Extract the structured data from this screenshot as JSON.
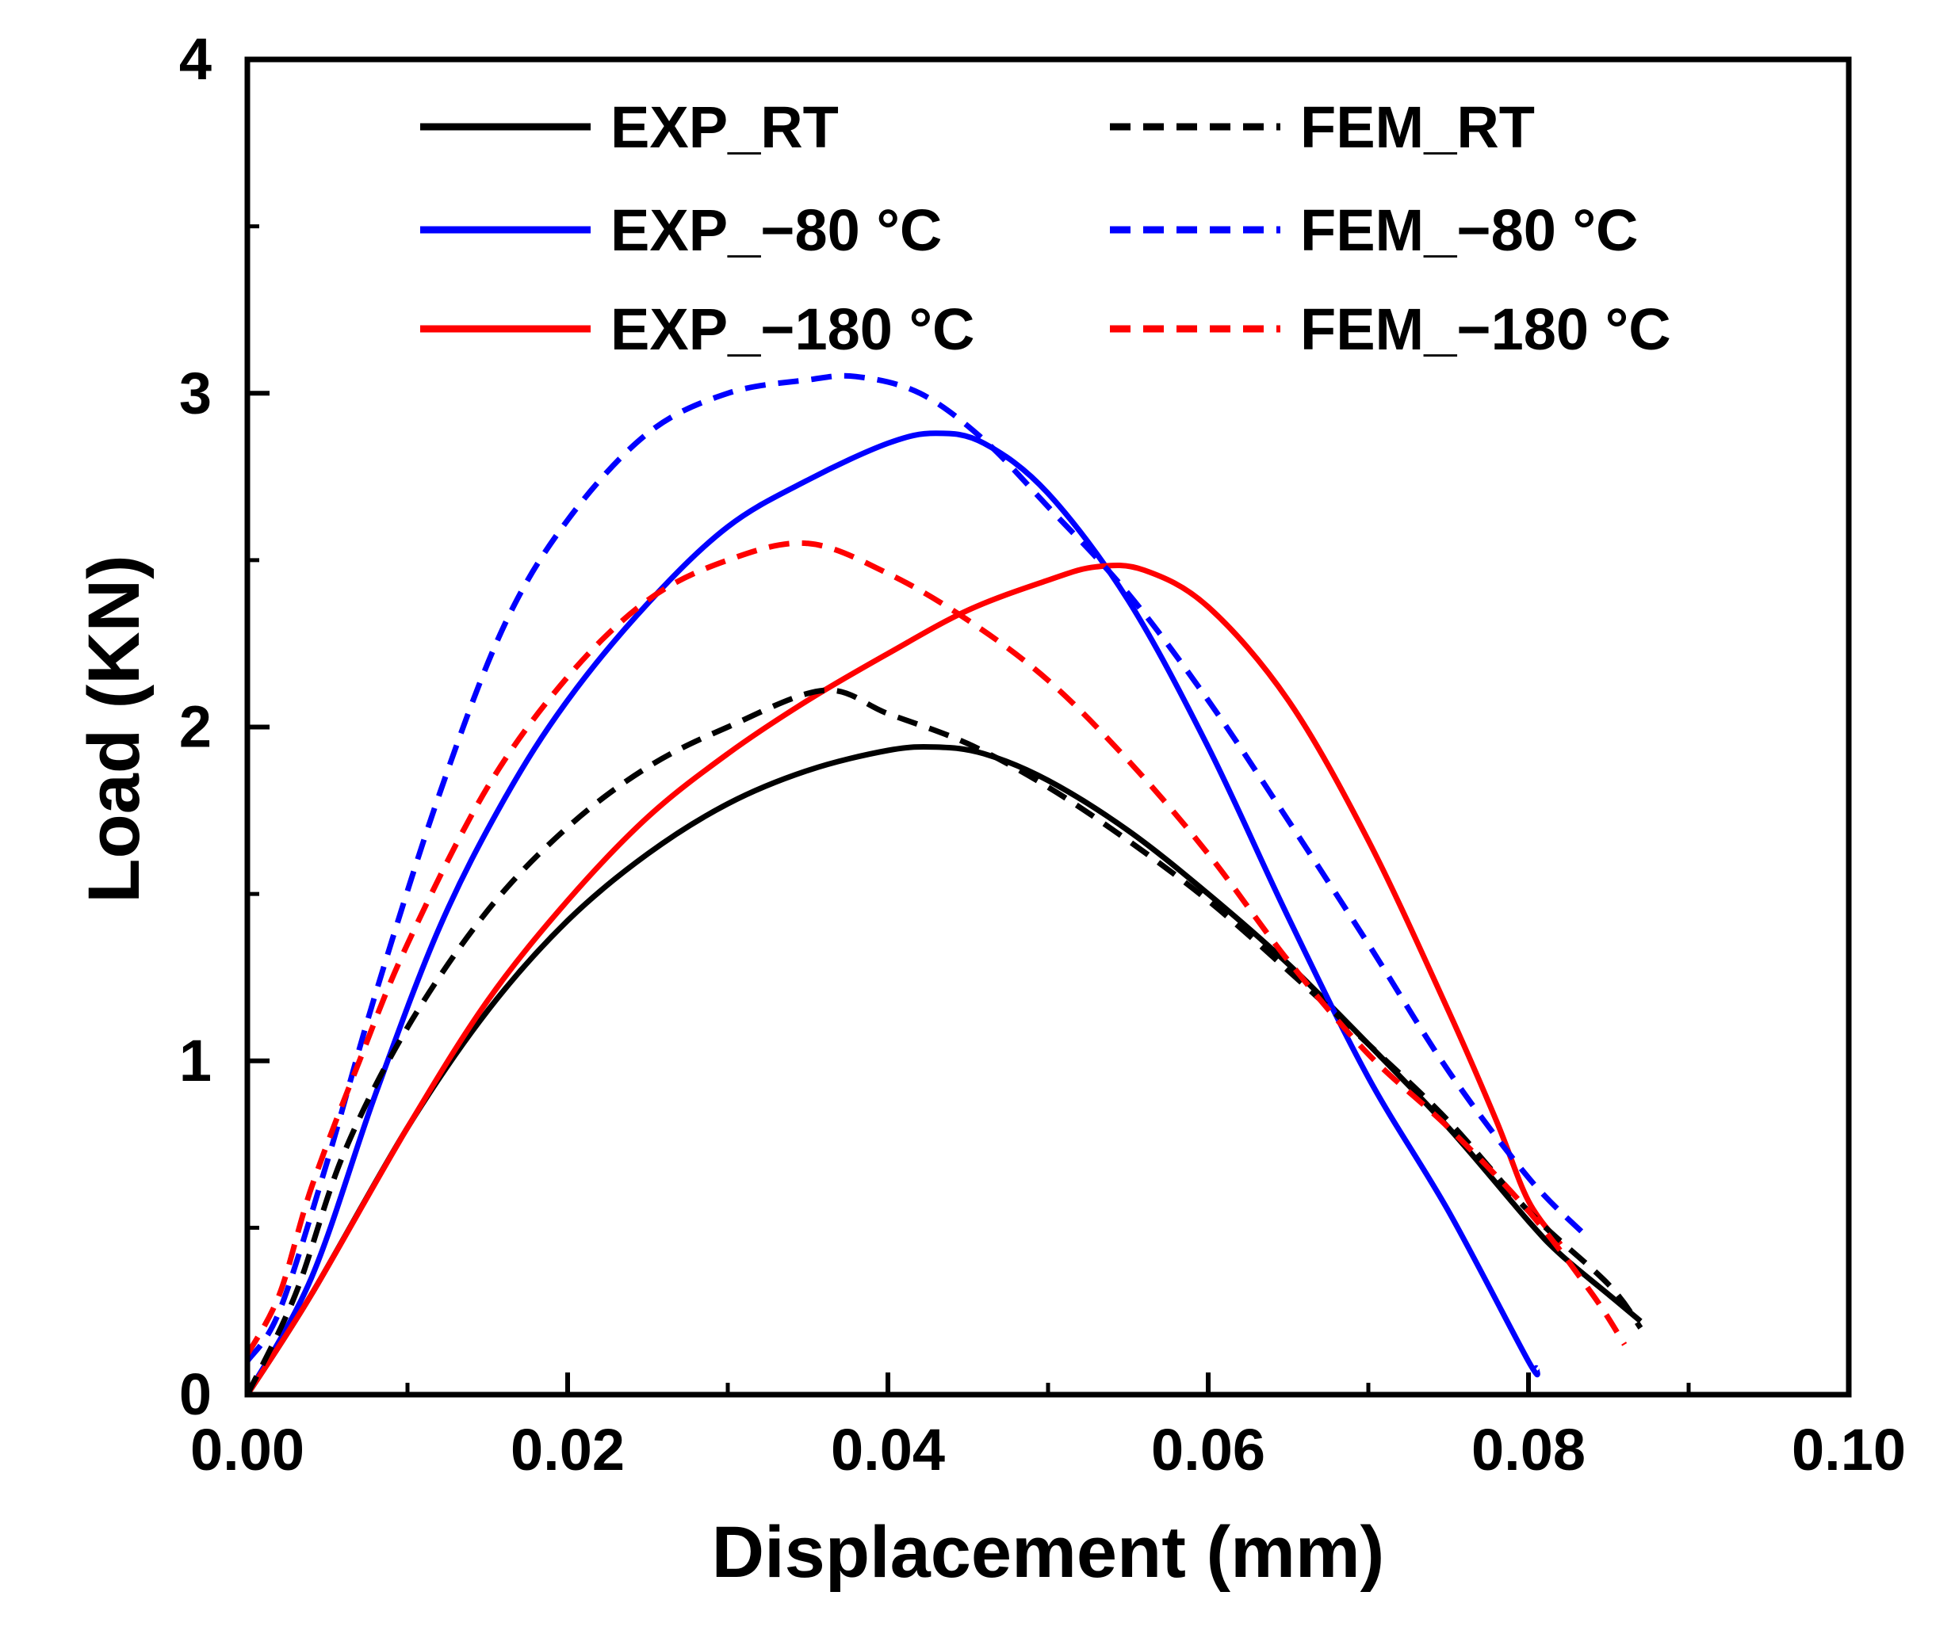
{
  "chart_data": {
    "type": "line",
    "title": "",
    "xlabel": "Displacement (mm)",
    "ylabel": "Load (KN)",
    "xlim": [
      0,
      0.1
    ],
    "ylim": [
      0,
      4
    ],
    "xticks": [
      0.0,
      0.02,
      0.04,
      0.06,
      0.08,
      0.1
    ],
    "xtick_labels": [
      "0.00",
      "0.02",
      "0.04",
      "0.06",
      "0.08",
      "0.10"
    ],
    "yticks": [
      0,
      1,
      2,
      3,
      4
    ],
    "ytick_labels": [
      "0",
      "1",
      "2",
      "3",
      "4"
    ],
    "grid": false,
    "legend_position": "top",
    "series": [
      {
        "name": "EXP_RT",
        "color": "#000000",
        "style": "solid",
        "points": [
          [
            0,
            0
          ],
          [
            0.004,
            0.3
          ],
          [
            0.01,
            0.8
          ],
          [
            0.015,
            1.15
          ],
          [
            0.02,
            1.42
          ],
          [
            0.025,
            1.62
          ],
          [
            0.03,
            1.77
          ],
          [
            0.035,
            1.87
          ],
          [
            0.04,
            1.93
          ],
          [
            0.043,
            1.94
          ],
          [
            0.046,
            1.92
          ],
          [
            0.05,
            1.84
          ],
          [
            0.055,
            1.69
          ],
          [
            0.06,
            1.5
          ],
          [
            0.065,
            1.29
          ],
          [
            0.07,
            1.05
          ],
          [
            0.075,
            0.8
          ],
          [
            0.08,
            0.52
          ],
          [
            0.082,
            0.42
          ],
          [
            0.085,
            0.3
          ],
          [
            0.087,
            0.22
          ]
        ]
      },
      {
        "name": "EXP_−80 °C",
        "color": "#0000ff",
        "style": "solid",
        "points": [
          [
            0,
            0
          ],
          [
            0.004,
            0.35
          ],
          [
            0.008,
            0.9
          ],
          [
            0.012,
            1.4
          ],
          [
            0.016,
            1.78
          ],
          [
            0.02,
            2.08
          ],
          [
            0.025,
            2.37
          ],
          [
            0.03,
            2.6
          ],
          [
            0.035,
            2.74
          ],
          [
            0.04,
            2.85
          ],
          [
            0.043,
            2.88
          ],
          [
            0.046,
            2.85
          ],
          [
            0.05,
            2.7
          ],
          [
            0.055,
            2.38
          ],
          [
            0.06,
            1.94
          ],
          [
            0.065,
            1.43
          ],
          [
            0.07,
            0.95
          ],
          [
            0.075,
            0.55
          ],
          [
            0.08,
            0.1
          ],
          [
            0.0805,
            0.08
          ]
        ]
      },
      {
        "name": "EXP_−180 °C",
        "color": "#ff0000",
        "style": "solid",
        "points": [
          [
            0,
            0
          ],
          [
            0.004,
            0.3
          ],
          [
            0.01,
            0.8
          ],
          [
            0.015,
            1.18
          ],
          [
            0.02,
            1.48
          ],
          [
            0.025,
            1.73
          ],
          [
            0.03,
            1.92
          ],
          [
            0.035,
            2.08
          ],
          [
            0.04,
            2.22
          ],
          [
            0.045,
            2.35
          ],
          [
            0.05,
            2.44
          ],
          [
            0.053,
            2.48
          ],
          [
            0.056,
            2.47
          ],
          [
            0.06,
            2.36
          ],
          [
            0.065,
            2.08
          ],
          [
            0.07,
            1.66
          ],
          [
            0.075,
            1.15
          ],
          [
            0.078,
            0.82
          ],
          [
            0.08,
            0.58
          ],
          [
            0.082,
            0.45
          ]
        ]
      },
      {
        "name": "FEM_RT",
        "color": "#000000",
        "style": "dashed",
        "points": [
          [
            0,
            0
          ],
          [
            0.003,
            0.3
          ],
          [
            0.006,
            0.72
          ],
          [
            0.01,
            1.1
          ],
          [
            0.015,
            1.45
          ],
          [
            0.02,
            1.7
          ],
          [
            0.025,
            1.88
          ],
          [
            0.03,
            2.0
          ],
          [
            0.036,
            2.11
          ],
          [
            0.04,
            2.04
          ],
          [
            0.045,
            1.95
          ],
          [
            0.05,
            1.82
          ],
          [
            0.055,
            1.66
          ],
          [
            0.06,
            1.48
          ],
          [
            0.065,
            1.27
          ],
          [
            0.07,
            1.05
          ],
          [
            0.075,
            0.82
          ],
          [
            0.08,
            0.55
          ],
          [
            0.085,
            0.33
          ],
          [
            0.087,
            0.2
          ]
        ]
      },
      {
        "name": "FEM_−80 °C",
        "color": "#0000ff",
        "style": "dashed",
        "points": [
          [
            0,
            0.1
          ],
          [
            0.002,
            0.25
          ],
          [
            0.005,
            0.7
          ],
          [
            0.008,
            1.2
          ],
          [
            0.012,
            1.8
          ],
          [
            0.016,
            2.3
          ],
          [
            0.02,
            2.62
          ],
          [
            0.025,
            2.88
          ],
          [
            0.03,
            3.0
          ],
          [
            0.035,
            3.04
          ],
          [
            0.038,
            3.05
          ],
          [
            0.042,
            3.0
          ],
          [
            0.046,
            2.86
          ],
          [
            0.05,
            2.66
          ],
          [
            0.055,
            2.4
          ],
          [
            0.06,
            2.08
          ],
          [
            0.065,
            1.72
          ],
          [
            0.07,
            1.35
          ],
          [
            0.075,
            0.97
          ],
          [
            0.08,
            0.65
          ],
          [
            0.0835,
            0.48
          ]
        ]
      },
      {
        "name": "FEM_−180 °C",
        "color": "#ff0000",
        "style": "dashed",
        "points": [
          [
            0,
            0.12
          ],
          [
            0.002,
            0.3
          ],
          [
            0.004,
            0.62
          ],
          [
            0.007,
            1.0
          ],
          [
            0.01,
            1.35
          ],
          [
            0.015,
            1.82
          ],
          [
            0.02,
            2.15
          ],
          [
            0.025,
            2.38
          ],
          [
            0.03,
            2.5
          ],
          [
            0.035,
            2.55
          ],
          [
            0.04,
            2.46
          ],
          [
            0.045,
            2.32
          ],
          [
            0.05,
            2.14
          ],
          [
            0.055,
            1.9
          ],
          [
            0.06,
            1.62
          ],
          [
            0.065,
            1.3
          ],
          [
            0.07,
            1.02
          ],
          [
            0.075,
            0.8
          ],
          [
            0.08,
            0.55
          ],
          [
            0.084,
            0.3
          ],
          [
            0.086,
            0.15
          ]
        ]
      }
    ]
  }
}
